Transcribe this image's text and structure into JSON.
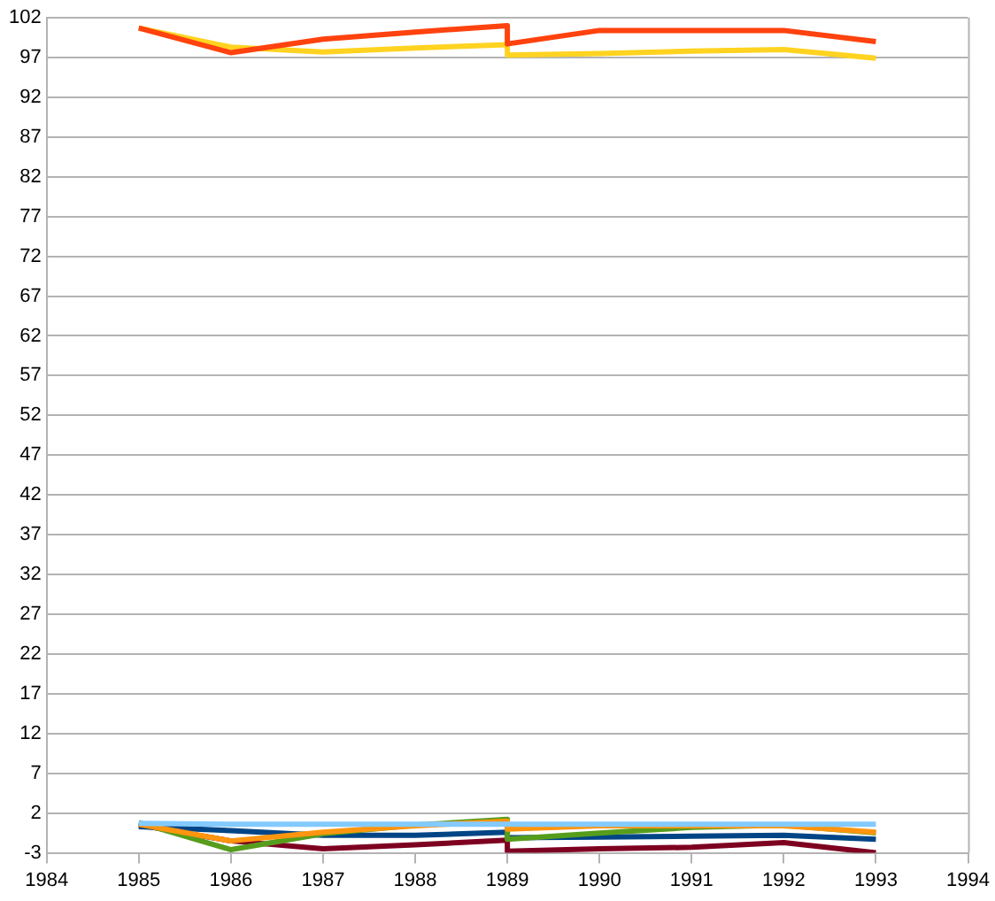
{
  "chart_data": {
    "type": "line",
    "xlim": [
      1984,
      1994
    ],
    "xticks": [
      1984,
      1985,
      1986,
      1987,
      1988,
      1989,
      1990,
      1991,
      1992,
      1993,
      1994
    ],
    "ylim": [
      -3,
      102
    ],
    "yticks": [
      -3,
      2,
      7,
      12,
      17,
      22,
      27,
      32,
      37,
      42,
      47,
      52,
      57,
      62,
      67,
      72,
      77,
      82,
      87,
      92,
      97,
      102
    ],
    "grid": "y",
    "legend": false,
    "marker": "none",
    "line_style": "solid",
    "x": [
      1985,
      1986,
      1987,
      1988,
      1989,
      1989,
      1990,
      1991,
      1992,
      1993
    ],
    "series": [
      {
        "color": "#ff420e",
        "values": [
          100.7,
          97.6,
          99.3,
          100.2,
          101.0,
          98.7,
          100.4,
          100.4,
          100.4,
          99.0
        ]
      },
      {
        "color": "#ffd320",
        "values": [
          100.7,
          98.3,
          97.7,
          98.2,
          98.6,
          97.3,
          97.5,
          97.8,
          98.0,
          96.9
        ]
      },
      {
        "color": "#83caff",
        "values": [
          0.7,
          0.6,
          0.6,
          0.6,
          0.6,
          0.6,
          0.6,
          0.6,
          0.6,
          0.6
        ]
      },
      {
        "color": "#ff950e",
        "values": [
          0.6,
          -1.5,
          -0.4,
          0.4,
          1.0,
          0.0,
          0.4,
          0.4,
          0.4,
          -0.4
        ]
      },
      {
        "color": "#579d1c",
        "values": [
          0.8,
          -2.6,
          -0.6,
          0.5,
          1.2,
          -1.3,
          -0.5,
          0.2,
          0.5,
          -0.5
        ]
      },
      {
        "color": "#004586",
        "values": [
          0.3,
          -0.2,
          -0.8,
          -0.8,
          -0.4,
          -1.1,
          -1.0,
          -0.9,
          -0.8,
          -1.3
        ]
      },
      {
        "color": "#7e0021",
        "values": [
          0.5,
          -1.5,
          -2.5,
          -2.0,
          -1.4,
          -2.8,
          -2.5,
          -2.3,
          -1.7,
          -3.0
        ]
      }
    ]
  }
}
